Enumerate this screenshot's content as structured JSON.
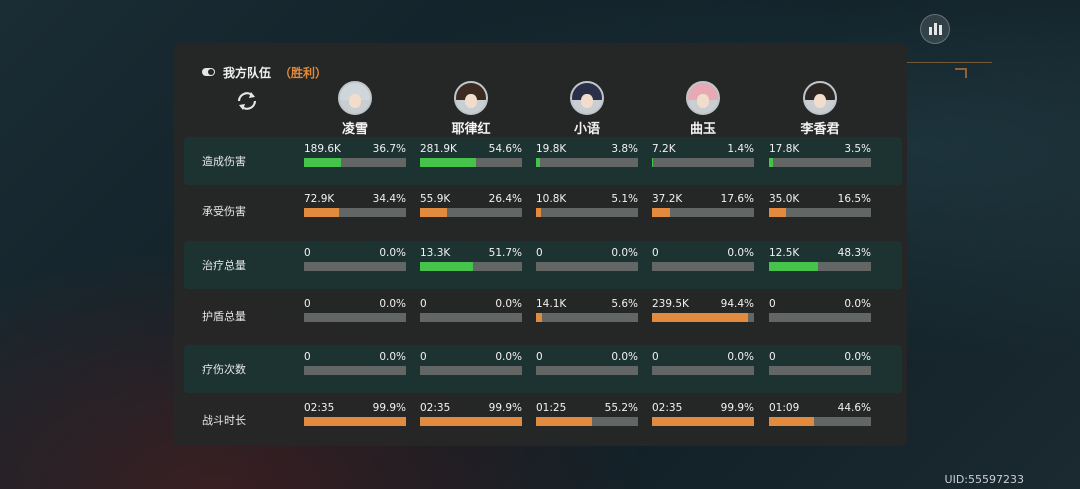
{
  "team": {
    "title": "我方队伍",
    "result": "（胜利）"
  },
  "uid": "UID:55597233",
  "colors": {
    "green": "#45c34b",
    "orange": "#e28a3e",
    "track": "#626766",
    "accent": "#e08a3c"
  },
  "characters": [
    {
      "name": "凌雪",
      "hair": "#cfd6dc"
    },
    {
      "name": "耶律红",
      "hair": "#3a2a22"
    },
    {
      "name": "小语",
      "hair": "#2a2f4a"
    },
    {
      "name": "曲玉",
      "hair": "#e7a9b3"
    },
    {
      "name": "李香君",
      "hair": "#2b2624"
    }
  ],
  "rows": [
    {
      "label": "造成伤害",
      "color": "green",
      "tinted": true,
      "cells": [
        {
          "value": "189.6K",
          "percent": "36.7%",
          "fill": 0.367
        },
        {
          "value": "281.9K",
          "percent": "54.6%",
          "fill": 0.546
        },
        {
          "value": "19.8K",
          "percent": "3.8%",
          "fill": 0.038
        },
        {
          "value": "7.2K",
          "percent": "1.4%",
          "fill": 0.014
        },
        {
          "value": "17.8K",
          "percent": "3.5%",
          "fill": 0.035
        }
      ]
    },
    {
      "label": "承受伤害",
      "color": "orange",
      "tinted": false,
      "cells": [
        {
          "value": "72.9K",
          "percent": "34.4%",
          "fill": 0.344
        },
        {
          "value": "55.9K",
          "percent": "26.4%",
          "fill": 0.264
        },
        {
          "value": "10.8K",
          "percent": "5.1%",
          "fill": 0.051
        },
        {
          "value": "37.2K",
          "percent": "17.6%",
          "fill": 0.176
        },
        {
          "value": "35.0K",
          "percent": "16.5%",
          "fill": 0.165
        }
      ]
    },
    {
      "label": "治疗总量",
      "color": "green",
      "tinted": true,
      "cells": [
        {
          "value": "0",
          "percent": "0.0%",
          "fill": 0
        },
        {
          "value": "13.3K",
          "percent": "51.7%",
          "fill": 0.517
        },
        {
          "value": "0",
          "percent": "0.0%",
          "fill": 0
        },
        {
          "value": "0",
          "percent": "0.0%",
          "fill": 0
        },
        {
          "value": "12.5K",
          "percent": "48.3%",
          "fill": 0.483
        }
      ]
    },
    {
      "label": "护盾总量",
      "color": "orange",
      "tinted": false,
      "cells": [
        {
          "value": "0",
          "percent": "0.0%",
          "fill": 0
        },
        {
          "value": "0",
          "percent": "0.0%",
          "fill": 0
        },
        {
          "value": "14.1K",
          "percent": "5.6%",
          "fill": 0.056
        },
        {
          "value": "239.5K",
          "percent": "94.4%",
          "fill": 0.944
        },
        {
          "value": "0",
          "percent": "0.0%",
          "fill": 0
        }
      ]
    },
    {
      "label": "疗伤次数",
      "color": "green",
      "tinted": true,
      "cells": [
        {
          "value": "0",
          "percent": "0.0%",
          "fill": 0
        },
        {
          "value": "0",
          "percent": "0.0%",
          "fill": 0
        },
        {
          "value": "0",
          "percent": "0.0%",
          "fill": 0
        },
        {
          "value": "0",
          "percent": "0.0%",
          "fill": 0
        },
        {
          "value": "0",
          "percent": "0.0%",
          "fill": 0
        }
      ]
    },
    {
      "label": "战斗时长",
      "color": "orange",
      "tinted": false,
      "cells": [
        {
          "value": "02:35",
          "percent": "99.9%",
          "fill": 0.999
        },
        {
          "value": "02:35",
          "percent": "99.9%",
          "fill": 0.999
        },
        {
          "value": "01:25",
          "percent": "55.2%",
          "fill": 0.552
        },
        {
          "value": "02:35",
          "percent": "99.9%",
          "fill": 0.999
        },
        {
          "value": "01:09",
          "percent": "44.6%",
          "fill": 0.446
        }
      ]
    }
  ]
}
